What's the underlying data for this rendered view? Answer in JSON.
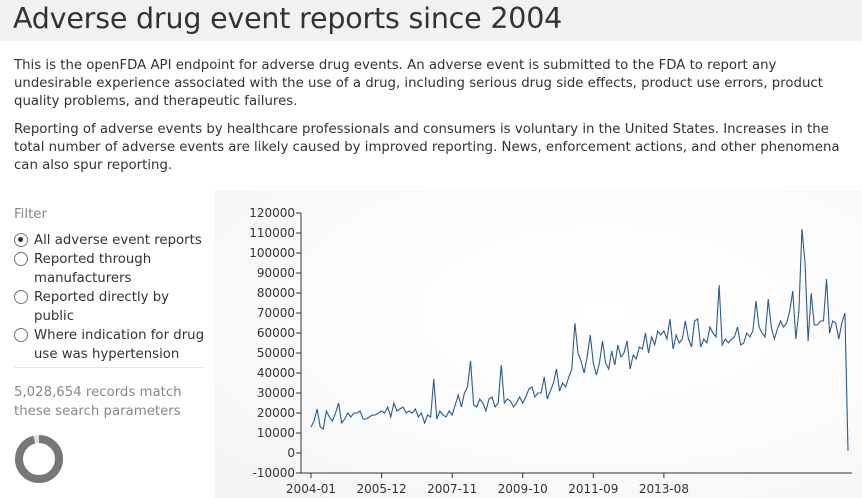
{
  "header": {
    "title": "Adverse drug event reports since 2004"
  },
  "intro": {
    "p1": "This is the openFDA API endpoint for adverse drug events. An adverse event is submitted to the FDA to report any undesirable experience associated with the use of a drug, including serious drug side effects, product use errors, product quality problems, and therapeutic failures.",
    "p2": "Reporting of adverse events by healthcare professionals and consumers is voluntary in the United States. Increases in the total number of adverse events are likely caused by improved reporting. News, enforcement actions, and other phenomena can also spur reporting."
  },
  "sidebar": {
    "filter_label": "Filter",
    "options": [
      {
        "label": "All adverse event reports",
        "checked": true
      },
      {
        "label": "Reported through manufacturers",
        "checked": false
      },
      {
        "label": "Reported directly by public",
        "checked": false
      },
      {
        "label": "Where indication for drug use was hypertension",
        "checked": false
      }
    ],
    "records_text": "5,028,654 records match these search parameters",
    "donut": {
      "match_fraction": 0.96,
      "track_color": "#dddddd",
      "fill_color": "#777777"
    }
  },
  "colors": {
    "line": "#2b5c8a",
    "axis": "#333333"
  },
  "chart_data": {
    "type": "line",
    "ylim": [
      -10000,
      120000
    ],
    "yticks": [
      -10000,
      0,
      10000,
      20000,
      30000,
      40000,
      50000,
      60000,
      70000,
      80000,
      90000,
      100000,
      110000,
      120000
    ],
    "x_start": "2004-01",
    "x_interval": "month",
    "xticks": [
      "2004-01",
      "2005-12",
      "2007-11",
      "2009-10",
      "2011-09",
      "2013-08"
    ],
    "series": [
      {
        "values": [
          13000,
          16000,
          22000,
          13000,
          12000,
          21000,
          18000,
          16000,
          20000,
          25000,
          15000,
          17000,
          20000,
          18000,
          20000,
          20000,
          21000,
          17000,
          17000,
          18000,
          19000,
          19000,
          20000,
          21000,
          20000,
          23000,
          18000,
          25000,
          21000,
          22000,
          23000,
          20000,
          21000,
          20000,
          22000,
          18000,
          20000,
          15000,
          19000,
          18000,
          37000,
          17000,
          21000,
          19000,
          18000,
          21000,
          19000,
          24000,
          29000,
          23000,
          30000,
          33000,
          46000,
          24000,
          23000,
          27000,
          25000,
          21000,
          27000,
          28000,
          23000,
          25000,
          44000,
          25000,
          27000,
          26000,
          23000,
          25000,
          28000,
          25000,
          28000,
          32000,
          33000,
          28000,
          30000,
          30000,
          38000,
          27000,
          31000,
          35000,
          42000,
          31000,
          35000,
          33000,
          38000,
          42000,
          65000,
          50000,
          46000,
          40000,
          48000,
          59000,
          45000,
          39000,
          45000,
          56000,
          45000,
          42000,
          51000,
          44000,
          54000,
          48000,
          50000,
          56000,
          42000,
          49000,
          47000,
          53000,
          52000,
          60000,
          50000,
          58000,
          54000,
          61000,
          59000,
          61000,
          57000,
          67000,
          52000,
          59000,
          55000,
          57000,
          66000,
          57000,
          53000,
          66000,
          67000,
          53000,
          57000,
          55000,
          63000,
          60000,
          58000,
          84000,
          54000,
          57000,
          55000,
          57000,
          58000,
          63000,
          54000,
          55000,
          60000,
          58000,
          61000,
          76000,
          63000,
          60000,
          58000,
          77000,
          63000,
          57000,
          62000,
          66000,
          63000,
          65000,
          71000,
          81000,
          57000,
          71000,
          112000,
          95000,
          56000,
          80000,
          64000,
          64000,
          66000,
          66000,
          87000,
          60000,
          66000,
          65000,
          57000,
          65000,
          70000,
          1000
        ]
      }
    ]
  }
}
